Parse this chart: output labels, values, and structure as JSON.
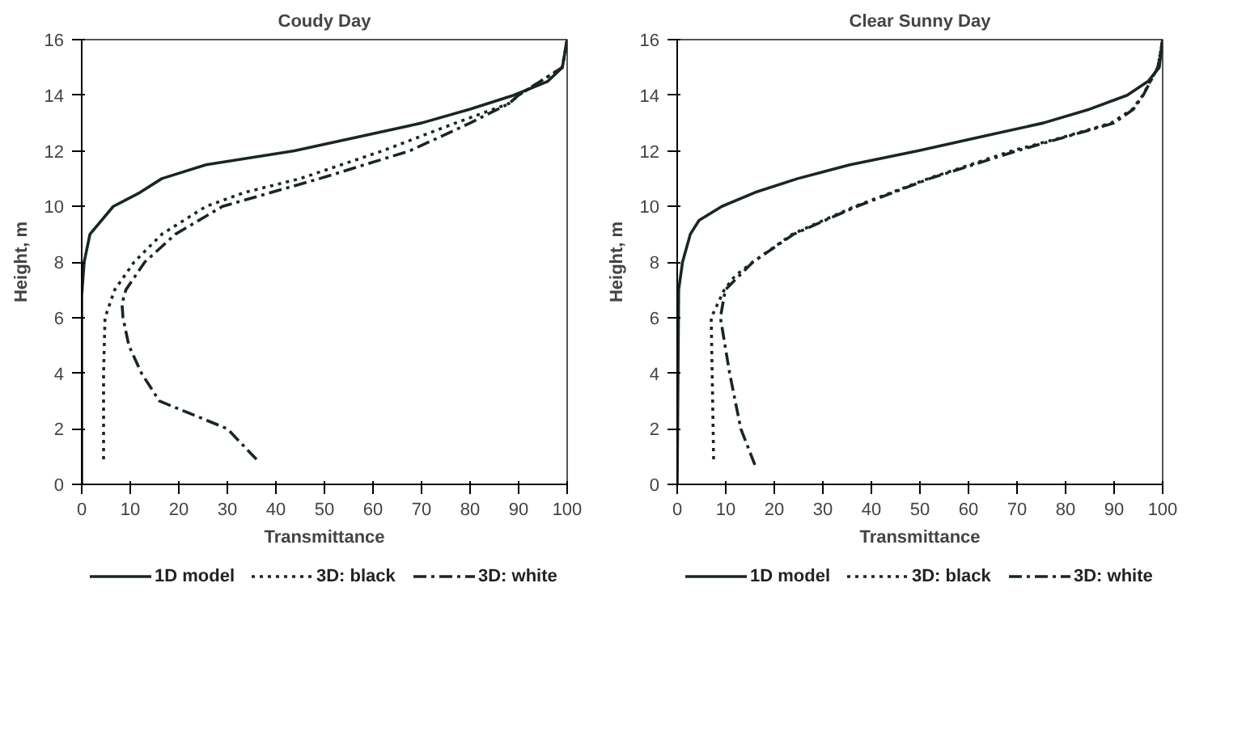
{
  "chart_data": [
    {
      "type": "line",
      "title": "Coudy Day",
      "xlabel": "Transmittance",
      "ylabel": "Height, m",
      "xlim": [
        0,
        100
      ],
      "ylim": [
        0,
        16
      ],
      "xticks": [
        0,
        10,
        20,
        30,
        40,
        50,
        60,
        70,
        80,
        90,
        100
      ],
      "yticks": [
        0,
        2,
        4,
        6,
        8,
        10,
        12,
        14,
        16
      ],
      "grid": false,
      "legend": "bottom",
      "series": [
        {
          "name": "1D model",
          "color": "#1a2626",
          "line_style": "solid",
          "x": [
            0,
            0,
            0.5,
            1.7,
            6.5,
            12,
            16.5,
            25.6,
            43.8,
            57,
            70,
            80,
            89,
            96,
            99,
            100
          ],
          "values": [
            0,
            6.8,
            8,
            9,
            10,
            10.5,
            11,
            11.5,
            12,
            12.5,
            13,
            13.5,
            14,
            14.5,
            15,
            16
          ]
        },
        {
          "name": "3D: black",
          "color": "#1a2626",
          "line_style": "dotted",
          "x": [
            4.5,
            4.5,
            4.8,
            6.8,
            10.8,
            16.5,
            25.6,
            33.5,
            45,
            62,
            77,
            88,
            90,
            99,
            100
          ],
          "values": [
            0.9,
            4,
            6,
            7,
            8,
            9,
            10,
            10.5,
            11,
            12,
            13,
            13.7,
            14,
            15,
            16
          ]
        },
        {
          "name": "3D: white",
          "color": "#1a2626",
          "line_style": "dashdot",
          "x": [
            36,
            30,
            16,
            12.3,
            9.7,
            8.5,
            8.3,
            9.1,
            13,
            19.3,
            29,
            49,
            67.6,
            80,
            88,
            90,
            99,
            100
          ],
          "values": [
            0.9,
            2,
            3,
            4,
            5,
            6,
            6.5,
            7,
            8,
            9,
            10,
            11,
            12,
            13,
            13.7,
            14,
            15,
            16
          ]
        }
      ]
    },
    {
      "type": "line",
      "title": "Clear Sunny Day",
      "xlabel": "Transmittance",
      "ylabel": "Height, m",
      "xlim": [
        0,
        100
      ],
      "ylim": [
        0,
        16
      ],
      "xticks": [
        0,
        10,
        20,
        30,
        40,
        50,
        60,
        70,
        80,
        90,
        100
      ],
      "yticks": [
        0,
        2,
        4,
        6,
        8,
        10,
        12,
        14,
        16
      ],
      "grid": false,
      "legend": "bottom",
      "series": [
        {
          "name": "1D model",
          "color": "#1a2626",
          "line_style": "solid",
          "x": [
            0,
            0.3,
            1.1,
            2.7,
            4.5,
            9.2,
            16,
            24.8,
            35.6,
            49.6,
            62.5,
            75.4,
            85,
            92.7,
            97,
            99.3,
            100
          ],
          "values": [
            0,
            7,
            8,
            9,
            9.5,
            10,
            10.5,
            11,
            11.5,
            12,
            12.5,
            13,
            13.5,
            14,
            14.5,
            15,
            16
          ]
        },
        {
          "name": "3D: black",
          "color": "#1a2626",
          "line_style": "dotted",
          "x": [
            7.5,
            7.3,
            7,
            9.7,
            11.9,
            15.6,
            23.7,
            36.6,
            51.7,
            69,
            79.7,
            89.4,
            93.8,
            95.9,
            99,
            100
          ],
          "values": [
            0.9,
            3,
            6,
            7,
            7.5,
            8,
            9,
            10,
            11,
            12,
            12.5,
            13,
            13.5,
            14,
            15,
            16
          ]
        },
        {
          "name": "3D: white",
          "color": "#1a2626",
          "line_style": "dashdot",
          "x": [
            16,
            13.1,
            10.8,
            8.9,
            9.9,
            15.6,
            24,
            37,
            52,
            70,
            90,
            94,
            96,
            99,
            100
          ],
          "values": [
            0.7,
            2,
            4,
            6,
            7,
            8,
            9,
            10,
            11,
            12,
            13,
            13.5,
            14,
            15,
            16
          ]
        }
      ]
    }
  ]
}
